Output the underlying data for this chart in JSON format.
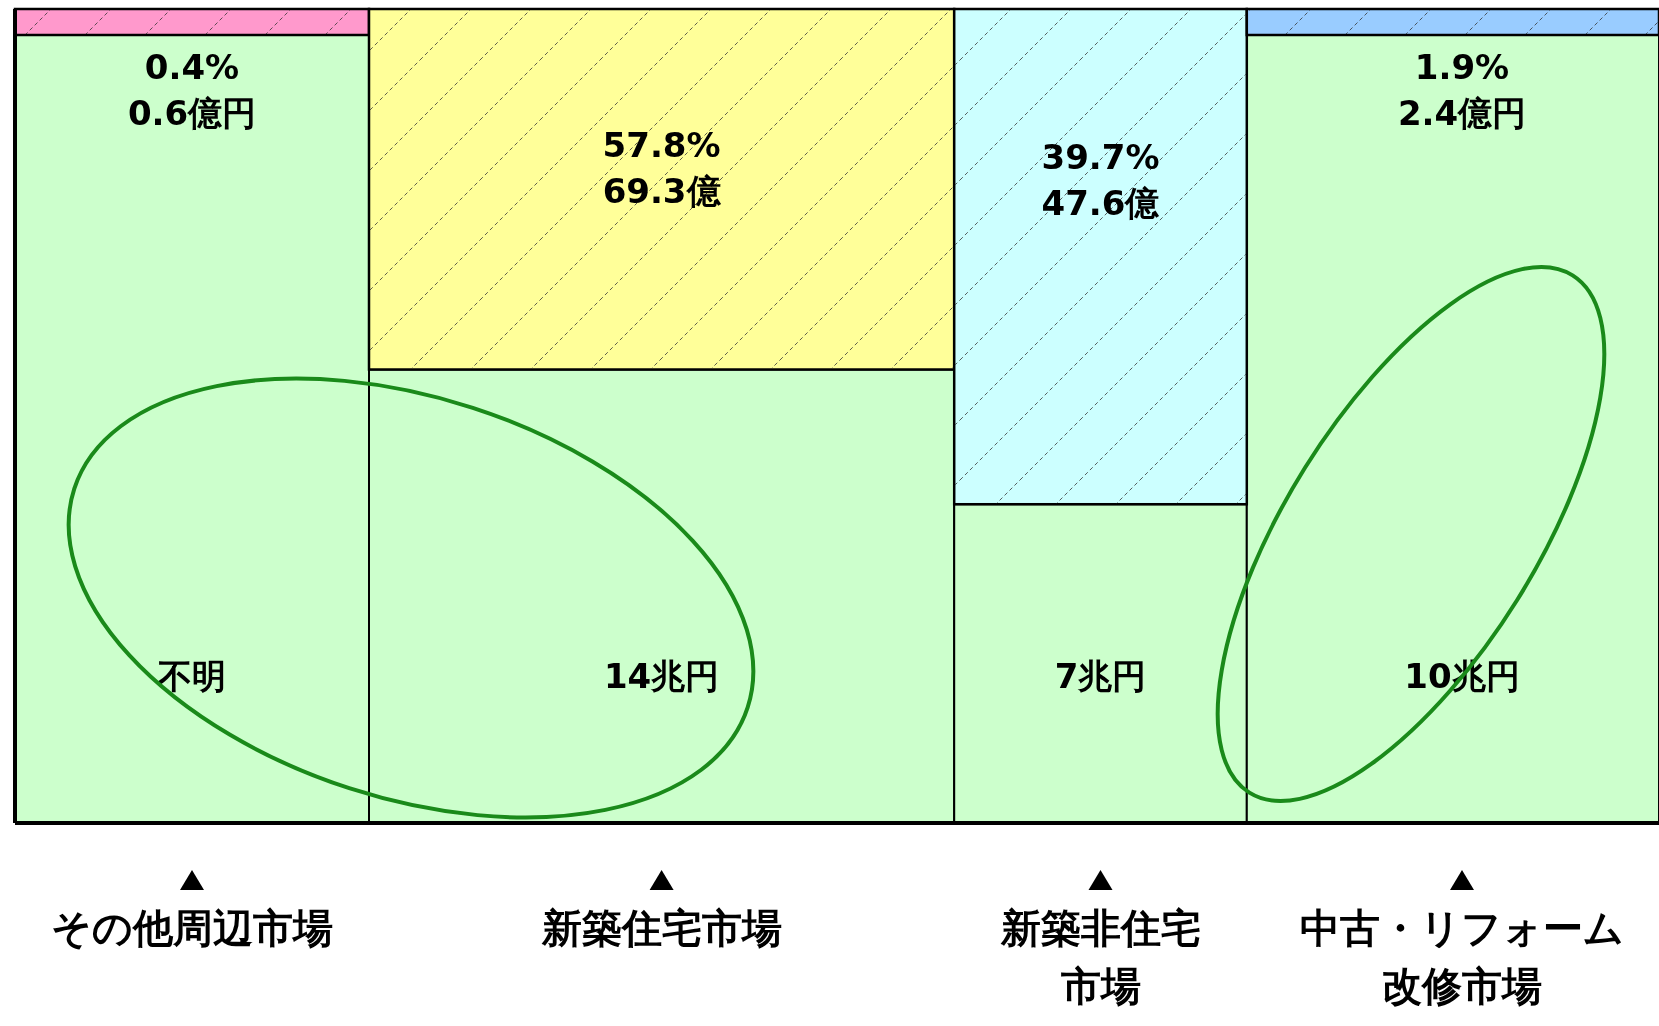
{
  "chart_data": {
    "type": "other",
    "categories": [
      "その他周辺市場",
      "新築住宅市場",
      "新築非住宅市場",
      "中古・リフォーム改修市場"
    ],
    "series": [
      {
        "values": [
          null,
          14,
          7,
          10
        ],
        "value_labels": [
          "不明",
          "14兆円",
          "7兆円",
          "10兆円"
        ],
        "color": "#ccffcc"
      },
      {
        "values": [
          0.4,
          57.8,
          39.7,
          1.9
        ],
        "value_labels": [
          "0.4%\n0.6億円",
          "57.8%\n69.3億",
          "39.7%\n47.6億",
          "1.9%\n2.4億円"
        ],
        "colors": [
          "#ff99cc",
          "#ffff99",
          "#ccffff",
          "#99ccff"
        ]
      }
    ]
  }
}
